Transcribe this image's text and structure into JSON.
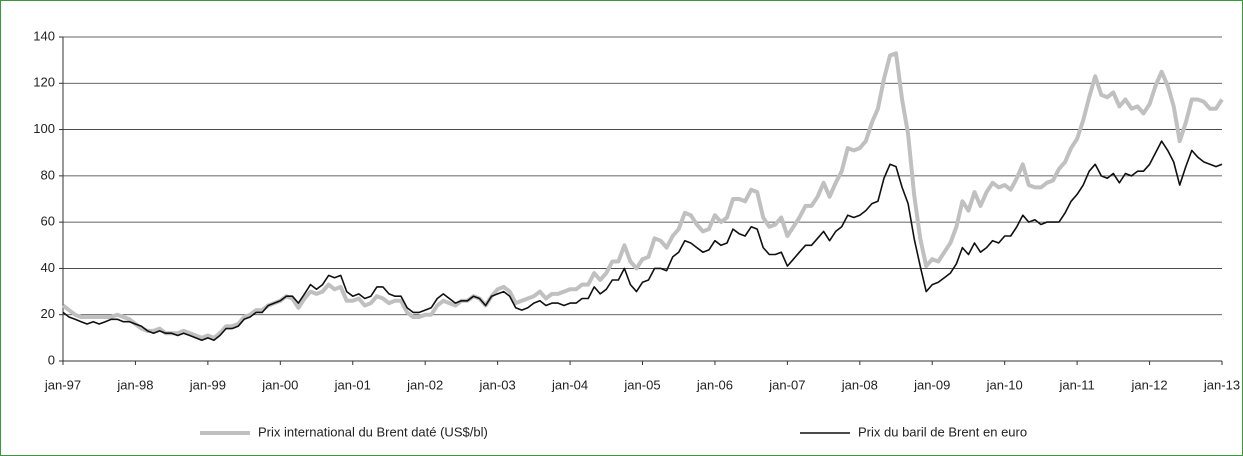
{
  "chart_data": {
    "type": "line",
    "categories": [
      "jan-97",
      null,
      null,
      null,
      null,
      null,
      null,
      null,
      null,
      null,
      null,
      null,
      "jan-98",
      null,
      null,
      null,
      null,
      null,
      null,
      null,
      null,
      null,
      null,
      null,
      "jan-99",
      null,
      null,
      null,
      null,
      null,
      null,
      null,
      null,
      null,
      null,
      null,
      "jan-00",
      null,
      null,
      null,
      null,
      null,
      null,
      null,
      null,
      null,
      null,
      null,
      "jan-01",
      null,
      null,
      null,
      null,
      null,
      null,
      null,
      null,
      null,
      null,
      null,
      "jan-02",
      null,
      null,
      null,
      null,
      null,
      null,
      null,
      null,
      null,
      null,
      null,
      "jan-03",
      null,
      null,
      null,
      null,
      null,
      null,
      null,
      null,
      null,
      null,
      null,
      "jan-04",
      null,
      null,
      null,
      null,
      null,
      null,
      null,
      null,
      null,
      null,
      null,
      "jan-05",
      null,
      null,
      null,
      null,
      null,
      null,
      null,
      null,
      null,
      null,
      null,
      "jan-06",
      null,
      null,
      null,
      null,
      null,
      null,
      null,
      null,
      null,
      null,
      null,
      "jan-07",
      null,
      null,
      null,
      null,
      null,
      null,
      null,
      null,
      null,
      null,
      null,
      "jan-08",
      null,
      null,
      null,
      null,
      null,
      null,
      null,
      null,
      null,
      null,
      null,
      "jan-09",
      null,
      null,
      null,
      null,
      null,
      null,
      null,
      null,
      null,
      null,
      null,
      "jan-10",
      null,
      null,
      null,
      null,
      null,
      null,
      null,
      null,
      null,
      null,
      null,
      "jan-11",
      null,
      null,
      null,
      null,
      null,
      null,
      null,
      null,
      null,
      null,
      null,
      "jan-12",
      null,
      null,
      null,
      null,
      null,
      null,
      null,
      null,
      null,
      null,
      null,
      "jan-13"
    ],
    "series": [
      {
        "name": "Prix international du Brent daté (US$/bl)",
        "color": "#c0c0c0",
        "values": [
          24,
          22,
          20,
          19,
          19,
          19,
          19,
          19,
          19,
          20,
          19,
          18,
          16,
          14,
          13,
          13,
          14,
          12,
          12,
          12,
          13,
          12,
          11,
          10,
          11,
          10,
          12,
          15,
          15,
          16,
          19,
          20,
          22,
          22,
          24,
          25,
          26,
          28,
          27,
          23,
          27,
          30,
          29,
          30,
          33,
          31,
          32,
          26,
          26,
          27,
          24,
          25,
          28,
          27,
          25,
          26,
          26,
          21,
          19,
          19,
          20,
          20,
          24,
          26,
          25,
          24,
          26,
          26,
          28,
          27,
          24,
          28,
          31,
          32,
          30,
          25,
          26,
          27,
          28,
          30,
          27,
          29,
          29,
          30,
          31,
          31,
          33,
          33,
          38,
          35,
          38,
          43,
          43,
          50,
          43,
          40,
          44,
          45,
          53,
          52,
          49,
          54,
          57,
          64,
          63,
          59,
          56,
          57,
          63,
          60,
          62,
          70,
          70,
          69,
          74,
          73,
          62,
          58,
          59,
          62,
          54,
          58,
          62,
          67,
          67,
          71,
          77,
          71,
          77,
          82,
          92,
          91,
          92,
          95,
          103,
          109,
          122,
          132,
          133,
          113,
          98,
          72,
          53,
          41,
          44,
          43,
          47,
          51,
          58,
          69,
          65,
          73,
          67,
          73,
          77,
          75,
          76,
          74,
          79,
          85,
          76,
          75,
          75,
          77,
          78,
          83,
          86,
          92,
          96,
          104,
          114,
          123,
          115,
          114,
          116,
          110,
          113,
          109,
          110,
          107,
          111,
          119,
          125,
          119,
          110,
          95,
          103,
          113,
          113,
          112,
          109,
          109,
          113
        ]
      },
      {
        "name": "Prix du baril de Brent en euro",
        "color": "#111111",
        "values": [
          21,
          19,
          18,
          17,
          16,
          17,
          16,
          17,
          18,
          18,
          17,
          17,
          16,
          15,
          13,
          12,
          13,
          12,
          12,
          11,
          12,
          11,
          10,
          9,
          10,
          9,
          11,
          14,
          14,
          15,
          18,
          19,
          21,
          21,
          24,
          25,
          26,
          28,
          28,
          25,
          29,
          33,
          31,
          33,
          37,
          36,
          37,
          30,
          28,
          29,
          27,
          28,
          32,
          32,
          29,
          28,
          28,
          23,
          21,
          21,
          22,
          23,
          27,
          29,
          27,
          25,
          26,
          26,
          28,
          27,
          24,
          28,
          29,
          30,
          28,
          23,
          22,
          23,
          25,
          26,
          24,
          25,
          25,
          24,
          25,
          25,
          27,
          27,
          32,
          29,
          31,
          35,
          35,
          40,
          33,
          30,
          34,
          35,
          40,
          40,
          39,
          45,
          47,
          52,
          51,
          49,
          47,
          48,
          52,
          50,
          51,
          57,
          55,
          54,
          58,
          57,
          49,
          46,
          46,
          47,
          41,
          44,
          47,
          50,
          50,
          53,
          56,
          52,
          56,
          58,
          63,
          62,
          63,
          65,
          68,
          69,
          79,
          85,
          84,
          75,
          68,
          53,
          41,
          30,
          33,
          34,
          36,
          38,
          42,
          49,
          46,
          51,
          47,
          49,
          52,
          51,
          54,
          54,
          58,
          63,
          60,
          61,
          59,
          60,
          60,
          60,
          64,
          69,
          72,
          76,
          82,
          85,
          80,
          79,
          81,
          77,
          81,
          80,
          82,
          82,
          85,
          90,
          95,
          91,
          86,
          76,
          84,
          91,
          88,
          86,
          85,
          84,
          85
        ]
      }
    ],
    "ylim": [
      0,
      140
    ],
    "yticks": [
      0,
      20,
      40,
      60,
      80,
      100,
      120,
      140
    ],
    "grid": true,
    "legend": "bottom"
  }
}
